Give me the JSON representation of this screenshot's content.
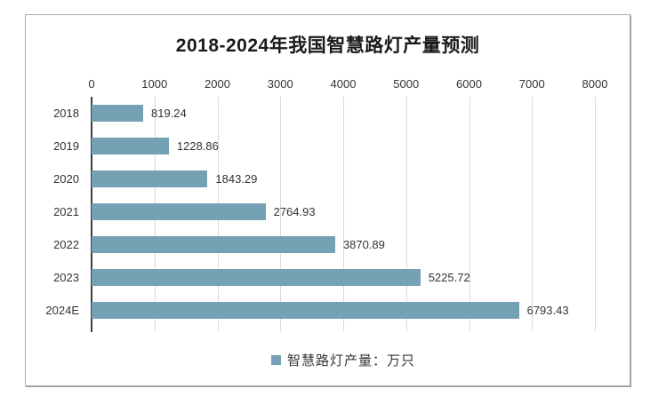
{
  "chart_data": {
    "type": "bar",
    "orientation": "horizontal",
    "title": "2018-2024年我国智慧路灯产量预测",
    "categories": [
      "2018",
      "2019",
      "2020",
      "2021",
      "2022",
      "2023",
      "2024E"
    ],
    "series": [
      {
        "name": "智慧路灯产量：万只",
        "values": [
          819.24,
          1228.86,
          1843.29,
          2764.93,
          3870.89,
          5225.72,
          6793.43
        ],
        "value_labels": [
          "819.24",
          "1228.86",
          "1843.29",
          "2764.93",
          "3870.89",
          "5225.72",
          "6793.43"
        ]
      }
    ],
    "x_axis": {
      "position": "top",
      "ticks": [
        0,
        1000,
        2000,
        3000,
        4000,
        5000,
        6000,
        7000,
        8000
      ],
      "tick_labels": [
        "0",
        "1000",
        "2000",
        "3000",
        "4000",
        "5000",
        "6000",
        "7000",
        "8000"
      ],
      "min": 0,
      "max": 8000
    },
    "grid": true,
    "legend": {
      "position": "bottom",
      "label": "智慧路灯产量：万只"
    },
    "colors": {
      "bar": "#75a1b4",
      "gridline": "#d9d9d9",
      "axis_line": "#3f3f3f",
      "text": "#333333",
      "title": "#1a1a1a",
      "border": "#acacac"
    }
  }
}
